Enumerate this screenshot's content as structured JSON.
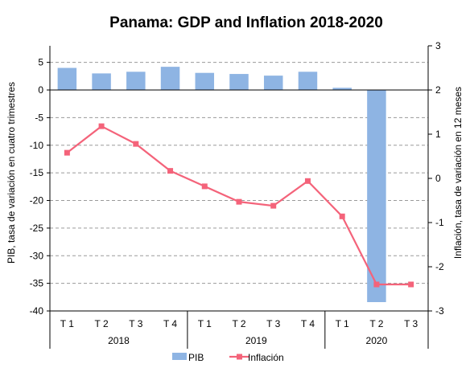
{
  "chart_data": {
    "type": "bar+line",
    "title": "Panama: GDP and Inflation 2018-2020",
    "ylabel_left": "PIB, tasa de variación en cuatro trimestres",
    "ylabel_right": "Inflación, tasa de variación en 12 meses",
    "ylim_left": [
      -40,
      8
    ],
    "ylim_right": [
      -3,
      3
    ],
    "yticks_left": [
      "5",
      "0",
      "-5",
      "-10",
      "-15",
      "-20",
      "-25",
      "-30",
      "-35",
      "-40"
    ],
    "yticks_left_values": [
      5,
      0,
      -5,
      -10,
      -15,
      -20,
      -25,
      -30,
      -35,
      -40
    ],
    "yticks_right": [
      "3",
      "2",
      "1",
      "0",
      "-1",
      "-2",
      "-3"
    ],
    "yticks_right_values": [
      3,
      2,
      1,
      0,
      -1,
      -2,
      -3
    ],
    "grid": true,
    "categories": [
      "T 1",
      "T 2",
      "T 3",
      "T 4",
      "T 1",
      "T 2",
      "T 3",
      "T 4",
      "T 1",
      "T 2",
      "T 3"
    ],
    "years": [
      {
        "label": "2018",
        "span": 4
      },
      {
        "label": "2019",
        "span": 4
      },
      {
        "label": "2020",
        "span": 3
      }
    ],
    "series": [
      {
        "name": "PIB",
        "type": "bar",
        "axis": "left",
        "color": "#8eb4e3",
        "values": [
          4.0,
          3.0,
          3.3,
          4.2,
          3.1,
          2.9,
          2.6,
          3.3,
          0.4,
          -38.4,
          null
        ]
      },
      {
        "name": "Inflación",
        "type": "line",
        "axis": "right",
        "color": "#f4637a",
        "values": [
          0.58,
          1.18,
          0.78,
          0.17,
          -0.18,
          -0.53,
          -0.62,
          -0.06,
          -0.86,
          -2.4,
          -2.4
        ]
      }
    ],
    "legend_position": "bottom"
  }
}
